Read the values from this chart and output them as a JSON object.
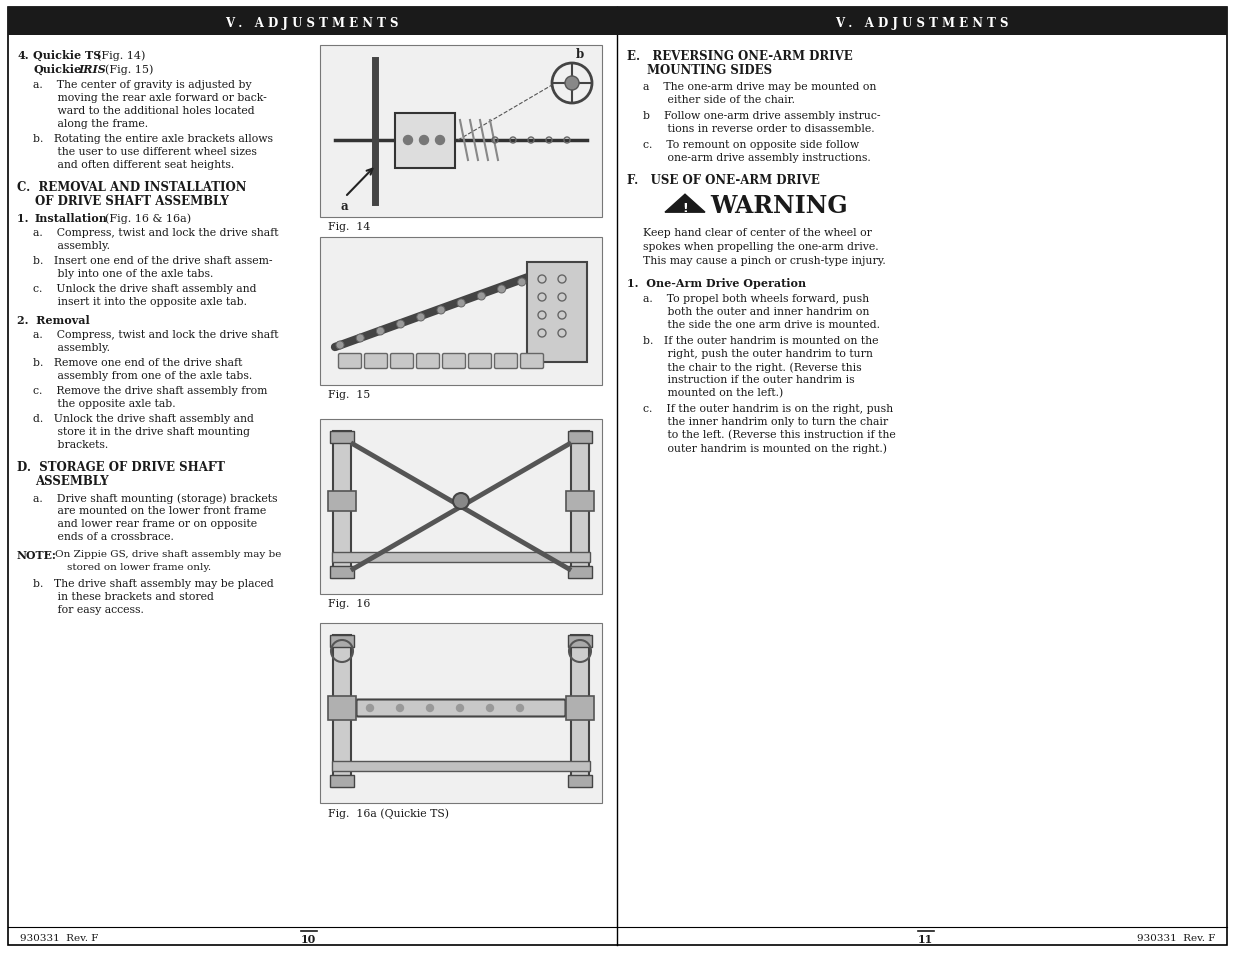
{
  "bg_color": "#ffffff",
  "header_bg": "#1a1a1a",
  "header_text_color": "#ffffff",
  "header_text": "V .   A D J U S T M E N T S",
  "body_text_color": "#1a1a1a",
  "footer_left_ref": "930331  Rev. F",
  "footer_right_ref": "930331  Rev. F",
  "footer_left_page": "10",
  "footer_right_page": "11"
}
